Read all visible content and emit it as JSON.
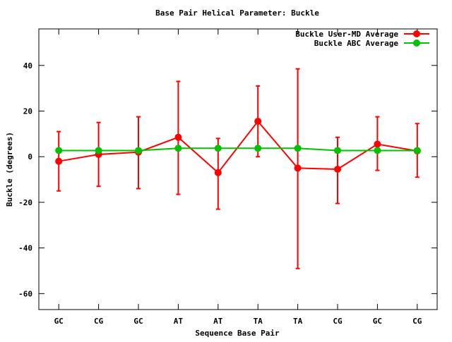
{
  "chart_data": {
    "type": "line",
    "title": "Base Pair Helical Parameter: Buckle",
    "xlabel": "Sequence Base Pair",
    "ylabel": "Buckle (degrees)",
    "categories": [
      "GC",
      "CG",
      "GC",
      "AT",
      "AT",
      "TA",
      "TA",
      "CG",
      "GC",
      "CG"
    ],
    "ylim": [
      -67,
      56
    ],
    "yticks": [
      -60,
      -40,
      -20,
      0,
      20,
      40
    ],
    "ytick_labels": [
      "-60",
      "-40",
      "-20",
      "0",
      "20",
      "40"
    ],
    "grid": false,
    "legend_position": "top-right",
    "series": [
      {
        "name": "Buckle User-MD Average",
        "color": "#ff0000",
        "values": [
          -2,
          1,
          2,
          8.5,
          -7,
          15.5,
          -5,
          -5.5,
          5.5,
          2.5
        ],
        "err_low": [
          -15,
          -13,
          -14,
          -16.5,
          -23,
          0,
          -49,
          -20.5,
          -6,
          -9
        ],
        "err_high": [
          11,
          15,
          17.5,
          33,
          8,
          31,
          38.5,
          8.5,
          17.5,
          14.5
        ]
      },
      {
        "name": "Buckle ABC Average",
        "color": "#00c000",
        "values": [
          2.7,
          2.7,
          2.7,
          3.7,
          3.7,
          3.7,
          3.7,
          2.7,
          2.7,
          2.7
        ]
      }
    ]
  }
}
